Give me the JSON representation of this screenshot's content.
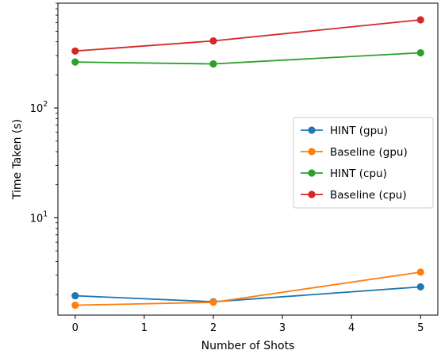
{
  "chart_data": {
    "type": "line",
    "xlabel": "Number of Shots",
    "ylabel": "Time Taken (s)",
    "yscale": "log",
    "x": [
      0,
      2,
      5
    ],
    "xticks": [
      0,
      1,
      2,
      3,
      4,
      5
    ],
    "xlim": [
      -0.25,
      5.25
    ],
    "ylim": [
      1.3,
      900
    ],
    "yticks": [
      {
        "value": 10,
        "base": "10",
        "exp": "1"
      },
      {
        "value": 100,
        "base": "10",
        "exp": "2"
      }
    ],
    "grid": false,
    "legend_position": "center-right",
    "series": [
      {
        "name": "HINT (gpu)",
        "color": "#1f77b4",
        "values": [
          1.95,
          1.72,
          2.35
        ]
      },
      {
        "name": "Baseline (gpu)",
        "color": "#ff7f0e",
        "values": [
          1.6,
          1.7,
          3.2
        ]
      },
      {
        "name": "HINT (cpu)",
        "color": "#2ca02c",
        "values": [
          262,
          252,
          318
        ]
      },
      {
        "name": "Baseline (cpu)",
        "color": "#d62728",
        "values": [
          330,
          408,
          635
        ]
      }
    ]
  }
}
